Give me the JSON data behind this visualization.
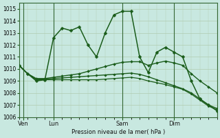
{
  "title": "Pression niveau de la mer( hPa )",
  "bg_color": "#c8e8e0",
  "grid_color": "#b0ccb0",
  "line_color": "#1a5c1a",
  "ylim": [
    1006,
    1015.5
  ],
  "yticks": [
    1006,
    1007,
    1008,
    1009,
    1010,
    1011,
    1012,
    1013,
    1014,
    1015
  ],
  "day_labels": [
    "Ven",
    "Lun",
    "Sam",
    "Dim"
  ],
  "day_positions": [
    0.5,
    4,
    12,
    18
  ],
  "vline_positions": [
    0.5,
    4,
    12,
    18
  ],
  "xlim": [
    0,
    23
  ],
  "series1": [
    1010.3,
    1009.6,
    1009.0,
    1009.1,
    1012.6,
    1013.4,
    1013.2,
    1013.5,
    1012.0,
    1011.0,
    1013.0,
    1014.5,
    1014.8,
    1014.8,
    1011.0,
    1009.7,
    1011.4,
    1011.8,
    1011.4,
    1011.0,
    1009.0,
    1007.5,
    1007.0,
    1006.5
  ],
  "series2": [
    1010.3,
    1009.6,
    1009.2,
    1009.2,
    1009.3,
    1009.4,
    1009.5,
    1009.6,
    1009.8,
    1010.0,
    1010.2,
    1010.4,
    1010.55,
    1010.6,
    1010.6,
    1010.3,
    1010.5,
    1010.65,
    1010.5,
    1010.3,
    1009.6,
    1009.0,
    1008.5,
    1008.0
  ],
  "series3": [
    1010.3,
    1009.6,
    1009.15,
    1009.15,
    1009.2,
    1009.25,
    1009.3,
    1009.35,
    1009.4,
    1009.45,
    1009.5,
    1009.55,
    1009.6,
    1009.65,
    1009.55,
    1009.35,
    1009.1,
    1008.85,
    1008.6,
    1008.35,
    1008.0,
    1007.5,
    1007.0,
    1006.7
  ],
  "series4": [
    1010.3,
    1009.6,
    1009.1,
    1009.1,
    1009.1,
    1009.1,
    1009.1,
    1009.1,
    1009.1,
    1009.1,
    1009.15,
    1009.2,
    1009.25,
    1009.3,
    1009.2,
    1009.0,
    1008.85,
    1008.7,
    1008.5,
    1008.3,
    1007.9,
    1007.4,
    1006.9,
    1006.6
  ]
}
